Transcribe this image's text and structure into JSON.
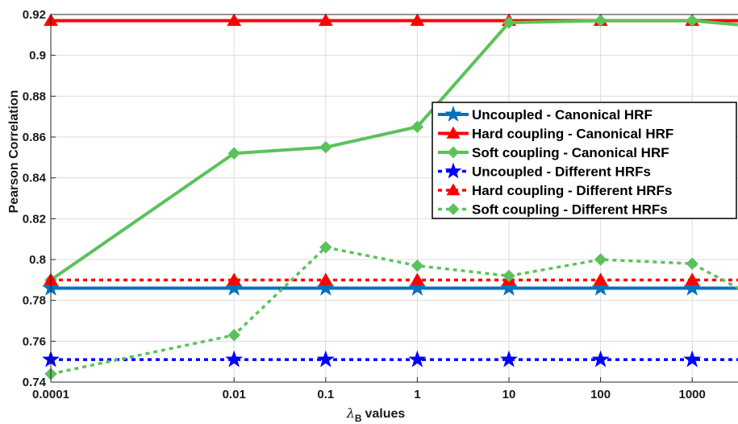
{
  "chart_data": {
    "type": "line",
    "title": "",
    "xlabel": "values",
    "xlabel_symbol": "λ",
    "xlabel_subscript": "B",
    "ylabel": "Pearson Correlation",
    "categories": [
      "0.0001",
      "0.01",
      "0.1",
      "1",
      "10",
      "100",
      "1000"
    ],
    "y_ticks": [
      "0.74",
      "0.76",
      "0.78",
      "0.8",
      "0.82",
      "0.84",
      "0.86",
      "0.88",
      "0.9",
      "0.92"
    ],
    "ylim": [
      0.74,
      0.92
    ],
    "x_extent_decades": [
      -4,
      3.5
    ],
    "grid": true,
    "legend_position": "top-right",
    "series": [
      {
        "name": "Uncoupled - Canonical HRF",
        "x": [
          0.0001,
          0.01,
          0.1,
          1,
          10,
          100,
          1000,
          3162
        ],
        "values": [
          0.786,
          0.786,
          0.786,
          0.786,
          0.786,
          0.786,
          0.786,
          0.786
        ],
        "color": "#0072BD",
        "line": "solid",
        "marker": "star",
        "markers": 7
      },
      {
        "name": "Hard coupling - Canonical HRF",
        "x": [
          0.0001,
          0.01,
          0.1,
          1,
          10,
          100,
          1000,
          3162
        ],
        "values": [
          0.917,
          0.917,
          0.917,
          0.917,
          0.917,
          0.917,
          0.917,
          0.917
        ],
        "color": "#FF0000",
        "line": "solid",
        "marker": "triangle",
        "markers": 7
      },
      {
        "name": "Soft coupling - Canonical HRF",
        "x": [
          0.0001,
          0.01,
          0.1,
          1,
          10,
          100,
          1000,
          3162
        ],
        "values": [
          0.79,
          0.852,
          0.855,
          0.865,
          0.916,
          0.917,
          0.917,
          0.915
        ],
        "color": "#5BC25B",
        "line": "solid",
        "marker": "diamond",
        "markers": 7
      },
      {
        "name": "Uncoupled - Different HRFs",
        "x": [
          0.0001,
          0.01,
          0.1,
          1,
          10,
          100,
          1000,
          3162
        ],
        "values": [
          0.751,
          0.751,
          0.751,
          0.751,
          0.751,
          0.751,
          0.751,
          0.751
        ],
        "color": "#0000FF",
        "line": "dotted",
        "marker": "star",
        "markers": 7
      },
      {
        "name": "Hard coupling - Different HRFs",
        "x": [
          0.0001,
          0.01,
          0.1,
          1,
          10,
          100,
          1000,
          3162
        ],
        "values": [
          0.79,
          0.79,
          0.79,
          0.79,
          0.79,
          0.79,
          0.79,
          0.79
        ],
        "color": "#FF0000",
        "line": "dotted",
        "marker": "triangle",
        "markers": 7
      },
      {
        "name": "Soft coupling - Different HRFs",
        "x": [
          0.0001,
          0.01,
          0.1,
          1,
          10,
          100,
          1000,
          3162
        ],
        "values": [
          0.744,
          0.763,
          0.806,
          0.797,
          0.792,
          0.8,
          0.798,
          0.786
        ],
        "color": "#5BC25B",
        "line": "dotted",
        "marker": "diamond",
        "markers": 7
      }
    ]
  }
}
